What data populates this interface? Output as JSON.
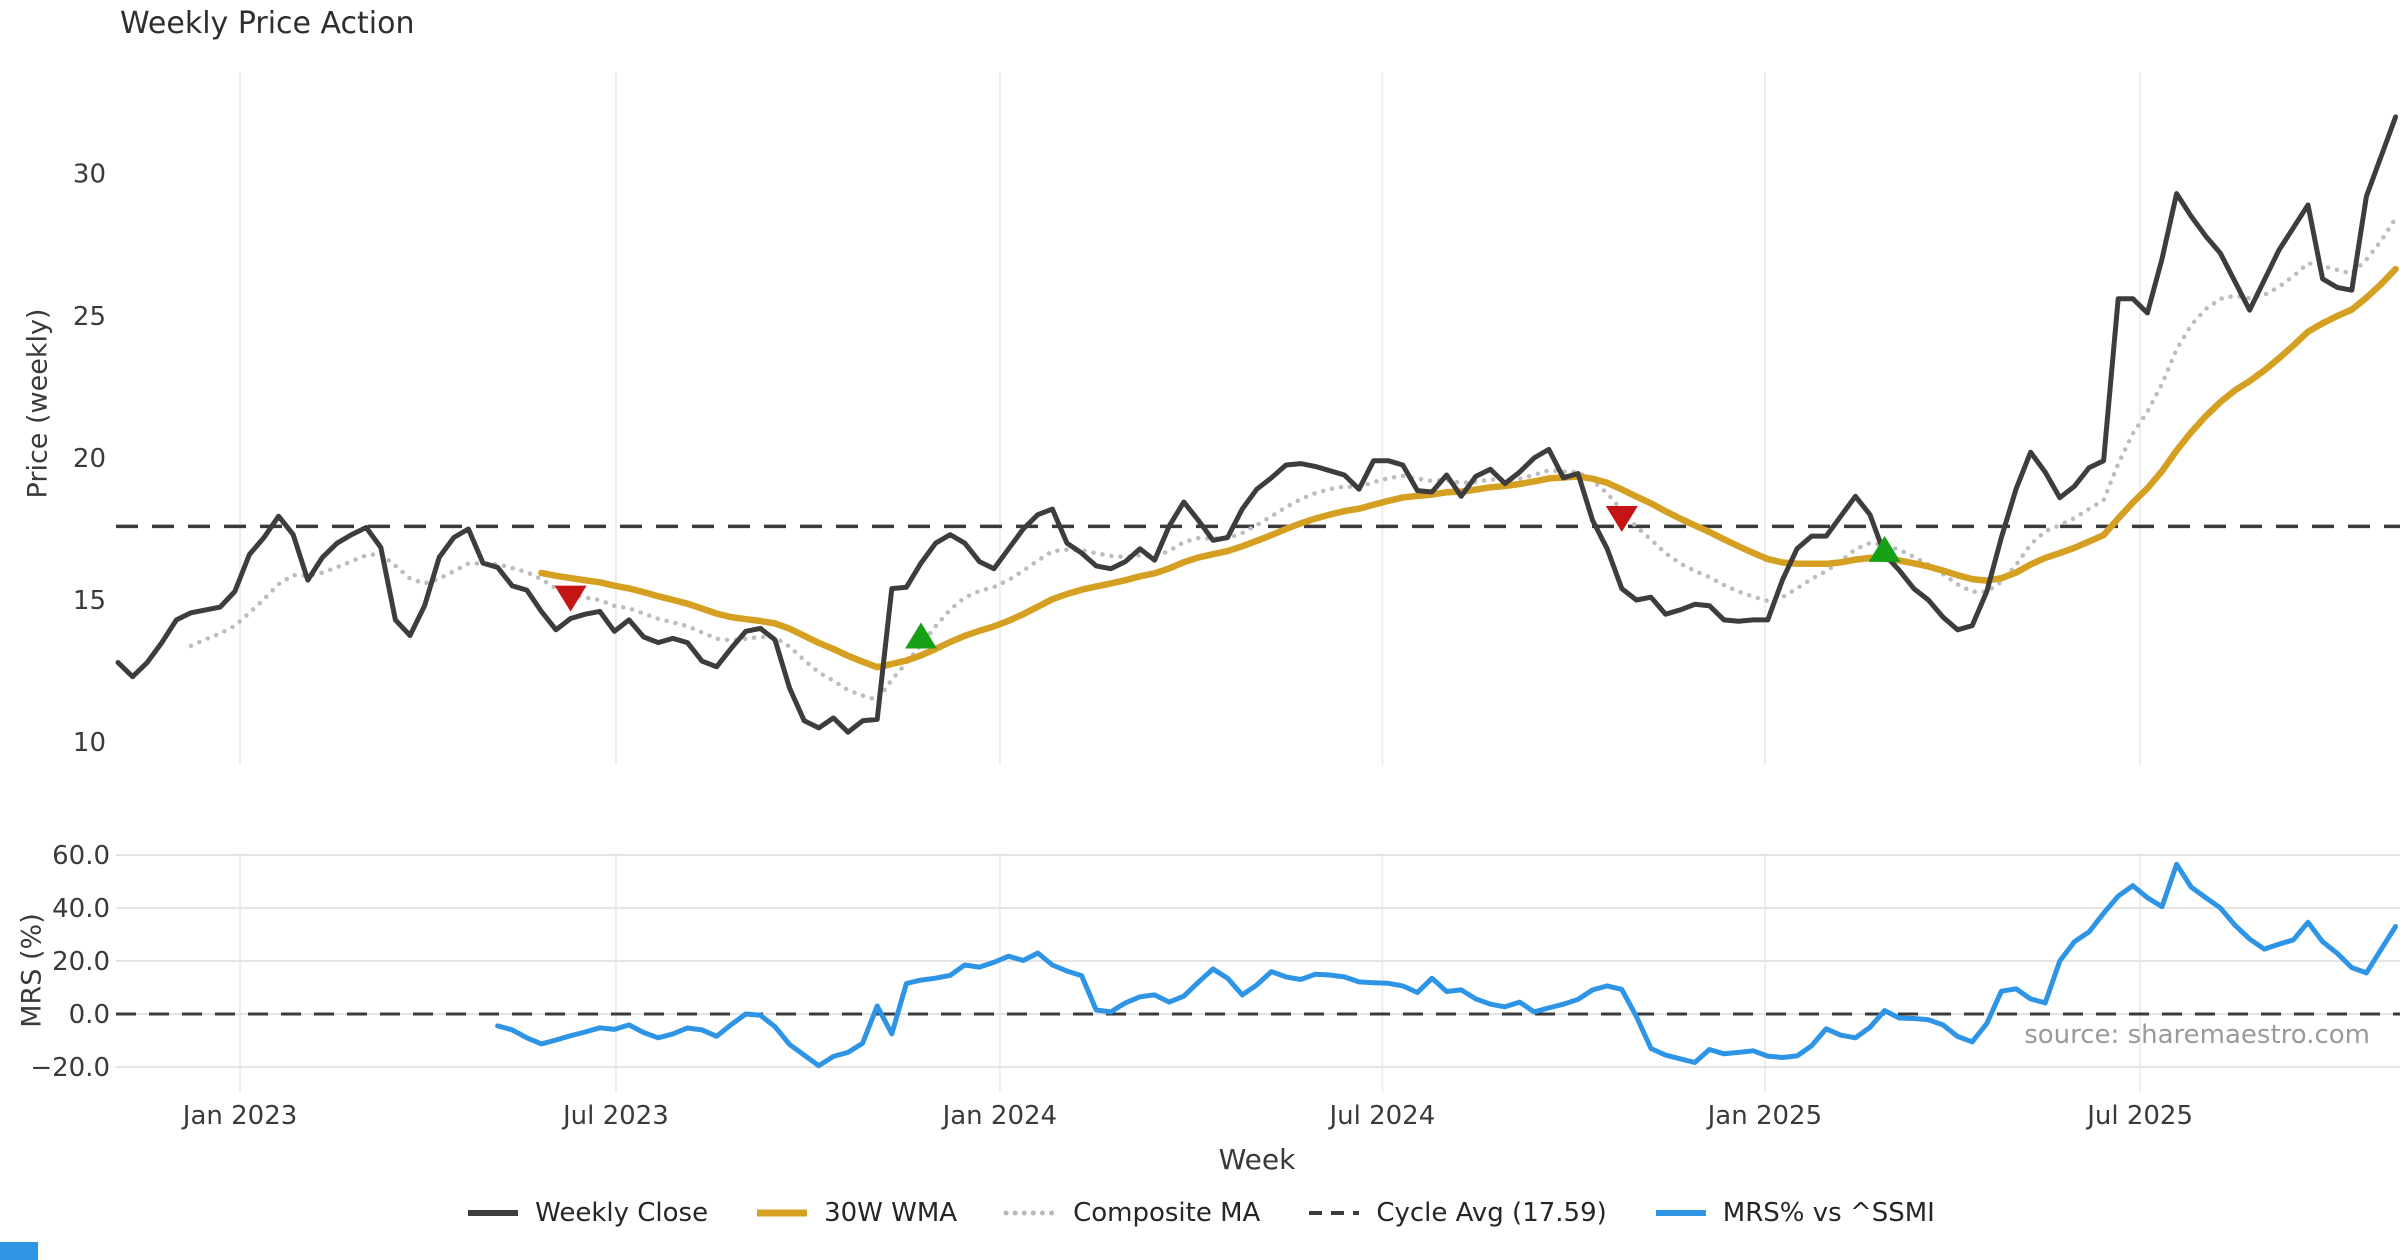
{
  "title": "Weekly Price Action",
  "source_note": "source: sharemaestro.com",
  "colors": {
    "background": "#ffffff",
    "grid_vertical": "#ededed",
    "grid_horizontal": "#e4e4e4",
    "tick_text": "#3a3a3a",
    "weekly_close": "#3d3d3d",
    "wma30": "#d5a021",
    "composite_ma": "#bdbdbd",
    "cycle_avg": "#3a3a3a",
    "mrs": "#2e94e6",
    "sell_marker": "#c41414",
    "buy_marker": "#16a016",
    "source_text": "#9a9a9a"
  },
  "legend": [
    {
      "label": "Weekly Close",
      "style": "solid",
      "color": "#3d3d3d",
      "weight": 6
    },
    {
      "label": "30W WMA",
      "style": "solid",
      "color": "#d5a021",
      "weight": 7
    },
    {
      "label": "Composite MA",
      "style": "dotted",
      "color": "#b9b9b9",
      "weight": 5
    },
    {
      "label": "Cycle Avg (17.59)",
      "style": "dashed",
      "color": "#3a3a3a",
      "weight": 4
    },
    {
      "label": "MRS% vs ^SSMI",
      "style": "solid",
      "color": "#2e94e6",
      "weight": 6
    }
  ],
  "chart_data": {
    "type": "line",
    "title": "Weekly Price Action",
    "x_axis": {
      "label": "Week",
      "ticks": [
        {
          "week": 8.36,
          "label": "Jan 2023"
        },
        {
          "week": 34.1,
          "label": "Jul 2023"
        },
        {
          "week": 60.4,
          "label": "Jan 2024"
        },
        {
          "week": 86.6,
          "label": "Jul 2024"
        },
        {
          "week": 112.8,
          "label": "Jan 2025"
        },
        {
          "week": 138.5,
          "label": "Jul 2025"
        }
      ]
    },
    "weeks_total": 157,
    "panels": [
      {
        "name": "price",
        "ylabel": "Price (weekly)",
        "ylim": [
          9.2,
          33.6
        ],
        "yticks": [
          {
            "value": 30,
            "label": "30"
          },
          {
            "value": 25,
            "label": "25"
          },
          {
            "value": 20,
            "label": "20"
          },
          {
            "value": 15,
            "label": "15"
          },
          {
            "value": 10,
            "label": "10"
          }
        ],
        "cycle_avg": {
          "value": 17.59,
          "label": "Cycle Avg (17.59)",
          "color": "#3a3a3a"
        },
        "series": [
          {
            "name": "Weekly Close",
            "color": "#3d3d3d",
            "width": 5,
            "start_week": 0,
            "values": [
              12.8,
              12.3,
              12.8,
              13.5,
              14.3,
              14.55,
              14.65,
              14.75,
              15.3,
              16.6,
              17.2,
              17.95,
              17.3,
              15.7,
              16.5,
              17.0,
              17.3,
              17.55,
              16.85,
              14.3,
              13.75,
              14.8,
              16.5,
              17.2,
              17.5,
              16.3,
              16.15,
              15.5,
              15.35,
              14.6,
              13.95,
              14.35,
              14.5,
              14.6,
              13.9,
              14.3,
              13.7,
              13.5,
              13.65,
              13.5,
              12.85,
              12.65,
              13.3,
              13.9,
              14.0,
              13.6,
              11.9,
              10.75,
              10.5,
              10.85,
              10.35,
              10.75,
              10.8,
              15.4,
              15.45,
              16.3,
              17.0,
              17.3,
              17.0,
              16.35,
              16.1,
              16.8,
              17.5,
              18.0,
              18.2,
              17.0,
              16.65,
              16.2,
              16.1,
              16.35,
              16.8,
              16.4,
              17.6,
              18.45,
              17.8,
              17.1,
              17.2,
              18.2,
              18.9,
              19.3,
              19.75,
              19.8,
              19.7,
              19.55,
              19.4,
              18.9,
              19.9,
              19.9,
              19.75,
              18.85,
              18.8,
              19.4,
              18.65,
              19.35,
              19.6,
              19.1,
              19.5,
              20.0,
              20.3,
              19.3,
              19.45,
              17.8,
              16.8,
              15.4,
              15.0,
              15.1,
              14.5,
              14.65,
              14.85,
              14.8,
              14.3,
              14.25,
              14.3,
              14.3,
              15.7,
              16.8,
              17.25,
              17.25,
              17.95,
              18.65,
              18.0,
              16.6,
              16.05,
              15.4,
              15.0,
              14.4,
              13.95,
              14.1,
              15.3,
              17.2,
              18.9,
              20.2,
              19.5,
              18.6,
              19.0,
              19.65,
              19.9,
              25.6,
              25.6,
              25.1,
              27.0,
              29.3,
              28.5,
              27.8,
              27.2,
              26.2,
              25.2,
              26.25,
              27.3,
              28.1,
              28.9,
              26.3,
              26.0,
              25.9,
              29.2,
              30.6,
              32.0
            ]
          },
          {
            "name": "30W WMA",
            "color": "#d5a021",
            "width": 6.5,
            "derived": "wma",
            "window": 30
          },
          {
            "name": "Composite MA",
            "color": "#bdbdbd",
            "width": 4.5,
            "style": "dotted",
            "derived": "ema",
            "window": 10,
            "draw_from": 5
          }
        ],
        "markers": {
          "sell": {
            "color": "#c41414",
            "shape": "triangle-down",
            "points": [
              {
                "week": 31,
                "value": 15.05
              },
              {
                "week": 103,
                "value": 17.85
              }
            ]
          },
          "buy": {
            "color": "#16a016",
            "shape": "triangle-up",
            "points": [
              {
                "week": 55,
                "value": 13.75
              },
              {
                "week": 121,
                "value": 16.8
              }
            ]
          }
        }
      },
      {
        "name": "mrs",
        "ylabel": "MRS (%)",
        "ylim": [
          -28.5,
          60.7
        ],
        "yticks": [
          {
            "value": 60,
            "label": "60.0"
          },
          {
            "value": 40,
            "label": "40.0"
          },
          {
            "value": 20,
            "label": "20.0"
          },
          {
            "value": 0,
            "label": "0.0"
          },
          {
            "value": -20,
            "label": "−20.0"
          }
        ],
        "zero_line": 0,
        "series": [
          {
            "name": "MRS% vs ^SSMI",
            "color": "#2e94e6",
            "width": 5,
            "start_week": 26,
            "values": [
              -4.5,
              -6.0,
              -9.0,
              -11.3,
              -9.8,
              -8.2,
              -6.8,
              -5.2,
              -5.8,
              -4.1,
              -7.0,
              -9.0,
              -7.5,
              -5.3,
              -6.0,
              -8.4,
              -4.0,
              0.0,
              -0.5,
              -4.8,
              -11.5,
              -15.5,
              -19.5,
              -16.0,
              -14.5,
              -11.0,
              3.0,
              -7.5,
              11.5,
              12.8,
              13.5,
              14.6,
              18.5,
              17.7,
              19.5,
              21.8,
              20.2,
              23.0,
              18.5,
              16.2,
              14.5,
              1.5,
              0.8,
              4.2,
              6.5,
              7.2,
              4.5,
              6.7,
              12.0,
              17.0,
              13.5,
              7.2,
              11.0,
              16.0,
              14.0,
              13.0,
              15.0,
              14.7,
              14.0,
              12.1,
              11.8,
              11.6,
              10.6,
              8.1,
              13.5,
              8.5,
              9.1,
              5.7,
              3.7,
              2.7,
              4.5,
              0.8,
              2.3,
              3.7,
              5.5,
              9.1,
              10.6,
              9.3,
              -1.0,
              -13.0,
              -15.5,
              -16.9,
              -18.3,
              -13.4,
              -15.0,
              -14.5,
              -13.9,
              -15.9,
              -16.4,
              -15.8,
              -12.0,
              -5.6,
              -8.0,
              -9.0,
              -5.0,
              1.3,
              -1.5,
              -1.7,
              -2.2,
              -4.1,
              -8.5,
              -10.5,
              -3.6,
              8.6,
              9.5,
              5.7,
              4.2,
              20.0,
              27.3,
              31.0,
              38.0,
              44.5,
              48.4,
              43.9,
              40.5,
              56.5,
              47.9,
              43.9,
              40.0,
              33.5,
              28.3,
              24.5,
              26.3,
              28.0,
              34.6,
              27.3,
              22.9,
              17.5,
              15.5,
              24.3,
              33.0
            ]
          }
        ]
      }
    ]
  }
}
